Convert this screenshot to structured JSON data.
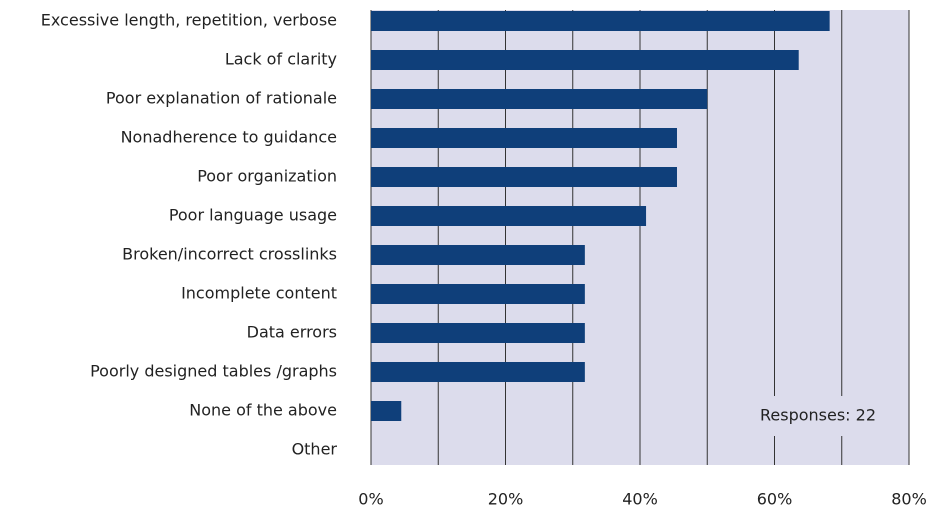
{
  "chart_data": {
    "type": "bar",
    "orientation": "horizontal",
    "categories": [
      "Excessive length, repetition, verbose",
      "Lack of clarity",
      "Poor explanation of rationale",
      "Nonadherence to guidance",
      "Poor organization",
      "Poor language usage",
      "Broken/incorrect crosslinks",
      "Incomplete content",
      "Data errors",
      "Poorly designed tables /graphs",
      "None of the above",
      "Other"
    ],
    "values": [
      68.2,
      63.6,
      50,
      45.5,
      45.5,
      40.9,
      31.8,
      31.8,
      31.8,
      31.8,
      4.5,
      0
    ],
    "color": "#0f3f7a",
    "xlim": [
      0,
      80
    ],
    "xticks": [
      {
        "value": 0,
        "label": "0%"
      },
      {
        "value": 20,
        "label": "20%"
      },
      {
        "value": 40,
        "label": "40%"
      },
      {
        "value": 60,
        "label": "60%"
      },
      {
        "value": 80,
        "label": "80%"
      }
    ],
    "xminor": [
      10,
      30,
      50,
      70
    ],
    "grid": true,
    "annotation": "Responses: 22"
  }
}
